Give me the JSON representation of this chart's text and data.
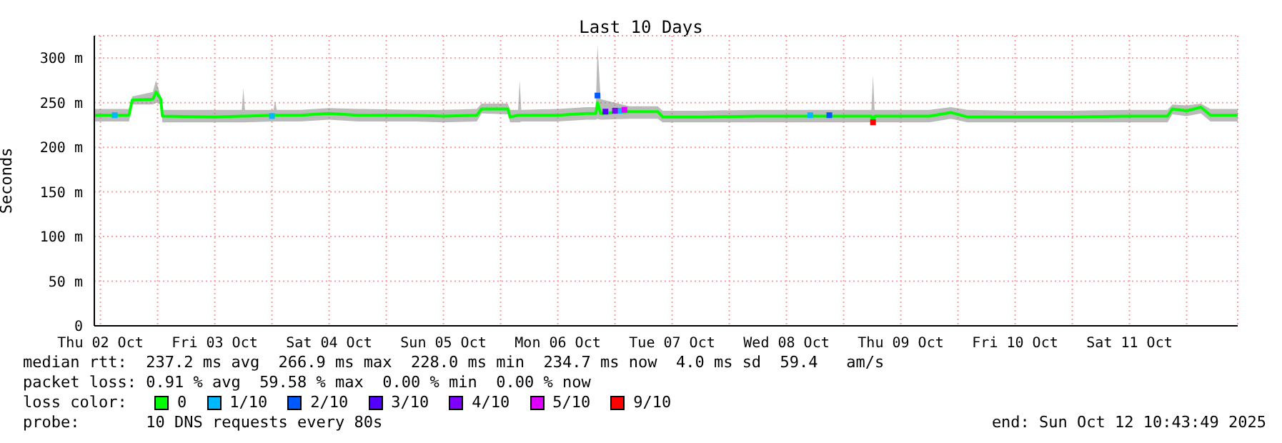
{
  "chart_data": {
    "type": "line",
    "title": "Last 10 Days",
    "ylabel": "Seconds",
    "legend_title": "loss color:",
    "legend": "bottom",
    "grid": true,
    "marker": "none",
    "line_style": "solid",
    "xlim": [
      "2025-10-02T10:43",
      "2025-10-12T10:43"
    ],
    "xticks": [
      {
        "value": "2025-10-02T12:00",
        "label": "Thu 02 Oct"
      },
      {
        "value": "2025-10-03T00:00",
        "label": null
      },
      {
        "value": "2025-10-03T12:00",
        "label": "Fri 03 Oct"
      },
      {
        "value": "2025-10-04T00:00",
        "label": null
      },
      {
        "value": "2025-10-04T12:00",
        "label": "Sat 04 Oct"
      },
      {
        "value": "2025-10-05T00:00",
        "label": null
      },
      {
        "value": "2025-10-05T12:00",
        "label": "Sun 05 Oct"
      },
      {
        "value": "2025-10-06T00:00",
        "label": null
      },
      {
        "value": "2025-10-06T12:00",
        "label": "Mon 06 Oct"
      },
      {
        "value": "2025-10-07T00:00",
        "label": null
      },
      {
        "value": "2025-10-07T12:00",
        "label": "Tue 07 Oct"
      },
      {
        "value": "2025-10-08T00:00",
        "label": null
      },
      {
        "value": "2025-10-08T12:00",
        "label": "Wed 08 Oct"
      },
      {
        "value": "2025-10-09T00:00",
        "label": null
      },
      {
        "value": "2025-10-09T12:00",
        "label": "Thu 09 Oct"
      },
      {
        "value": "2025-10-10T00:00",
        "label": null
      },
      {
        "value": "2025-10-10T12:00",
        "label": "Fri 10 Oct"
      },
      {
        "value": "2025-10-11T00:00",
        "label": null
      },
      {
        "value": "2025-10-11T12:00",
        "label": "Sat 11 Oct"
      },
      {
        "value": "2025-10-12T00:00",
        "label": null
      }
    ],
    "ylim": [
      0,
      325
    ],
    "yticks": [
      0,
      {
        "value": 50,
        "label": "50 m"
      },
      {
        "value": 100,
        "label": "100 m"
      },
      {
        "value": 150,
        "label": "150 m"
      },
      {
        "value": 200,
        "label": "200 m"
      },
      {
        "value": 250,
        "label": "250 m"
      },
      {
        "value": 300,
        "label": "300 m"
      }
    ],
    "series": [
      {
        "name": "0",
        "color": "#00ff00",
        "x": [
          "2025-10-02T10:43",
          "2025-10-02T18:00",
          "2025-10-02T18:40",
          "2025-10-02T23:00",
          "2025-10-02T23:40",
          "2025-10-03T00:40",
          "2025-10-03T01:00",
          "2025-10-03T12:00",
          "2025-10-03T17:40",
          "2025-10-03T18:00",
          "2025-10-03T18:20",
          "2025-10-04T00:20",
          "2025-10-04T00:40",
          "2025-10-04T01:00",
          "2025-10-04T06:00",
          "2025-10-04T12:00",
          "2025-10-04T18:00",
          "2025-10-05T06:00",
          "2025-10-05T12:00",
          "2025-10-05T19:00",
          "2025-10-05T20:00",
          "2025-10-06T01:30",
          "2025-10-06T02:00",
          "2025-10-06T03:40",
          "2025-10-06T04:00",
          "2025-10-06T04:20",
          "2025-10-06T12:00",
          "2025-10-06T18:00",
          "2025-10-06T20:00",
          "2025-10-06T20:20",
          "2025-10-06T21:00",
          "2025-10-07T03:00",
          "2025-10-07T09:00",
          "2025-10-07T10:00",
          "2025-10-07T18:00",
          "2025-10-08T06:00",
          "2025-10-08T18:00",
          "2025-10-09T05:50",
          "2025-10-09T06:10",
          "2025-10-09T06:30",
          "2025-10-09T18:00",
          "2025-10-09T22:30",
          "2025-10-10T02:00",
          "2025-10-10T12:00",
          "2025-10-11T00:00",
          "2025-10-11T12:00",
          "2025-10-11T20:00",
          "2025-10-11T21:00",
          "2025-10-12T00:00",
          "2025-10-12T03:00",
          "2025-10-12T05:00",
          "2025-10-12T10:43"
        ],
        "values": [
          236,
          236,
          253,
          254,
          262,
          254,
          235,
          234,
          235,
          235,
          235,
          236,
          236,
          236,
          236,
          238,
          236,
          236,
          235,
          236,
          243,
          243,
          234,
          236,
          236,
          236,
          236,
          238,
          238,
          250,
          238,
          240,
          240,
          234,
          234,
          235,
          235,
          235,
          228,
          235,
          235,
          239,
          234,
          234,
          234,
          235,
          235,
          243,
          241,
          245,
          236,
          236
        ],
        "lower": [
          229,
          229,
          248,
          248,
          250,
          248,
          228,
          228,
          228,
          228,
          228,
          229,
          229,
          229,
          229,
          231,
          229,
          229,
          228,
          229,
          238,
          237,
          228,
          228,
          228,
          229,
          229,
          231,
          231,
          232,
          231,
          232,
          232,
          228,
          228,
          228,
          228,
          228,
          226,
          228,
          228,
          232,
          228,
          228,
          228,
          228,
          228,
          237,
          235,
          238,
          229,
          229
        ],
        "upper": [
          243,
          243,
          257,
          262,
          275,
          257,
          242,
          242,
          242,
          266,
          242,
          242,
          252,
          242,
          242,
          244,
          243,
          242,
          242,
          243,
          249,
          249,
          242,
          242,
          275,
          242,
          243,
          245,
          245,
          315,
          254,
          246,
          246,
          241,
          241,
          242,
          242,
          242,
          280,
          242,
          242,
          245,
          242,
          241,
          241,
          242,
          242,
          248,
          247,
          249,
          243,
          243
        ]
      },
      {
        "name": "1/10",
        "type": "scatter",
        "marker": "square",
        "color": "#00b8ff",
        "x": [
          "2025-10-02T15:00",
          "2025-10-04T00:00",
          "2025-10-07T01:00",
          "2025-10-08T17:00"
        ],
        "values": [
          236,
          235,
          241,
          236
        ]
      },
      {
        "name": "2/10",
        "type": "scatter",
        "marker": "square",
        "color": "#0059ff",
        "x": [
          "2025-10-06T20:20",
          "2025-10-08T21:00"
        ],
        "values": [
          258,
          236
        ]
      },
      {
        "name": "3/10",
        "type": "scatter",
        "marker": "square",
        "color": "#5500ff",
        "x": [
          "2025-10-06T22:00"
        ],
        "values": [
          240
        ]
      },
      {
        "name": "4/10",
        "type": "scatter",
        "marker": "square",
        "color": "#7e00ff",
        "x": [
          "2025-10-07T00:00"
        ],
        "values": [
          241
        ]
      },
      {
        "name": "5/10",
        "type": "scatter",
        "marker": "square",
        "color": "#dd00ff",
        "x": [
          "2025-10-07T02:00"
        ],
        "values": [
          242
        ]
      },
      {
        "name": "9/10",
        "type": "scatter",
        "marker": "square",
        "color": "#ff0000",
        "x": [
          "2025-10-09T06:10"
        ],
        "values": [
          228
        ]
      }
    ],
    "annotations": [
      "median rtt:  237.2 ms avg  266.9 ms max  228.0 ms min  234.7 ms now  4.0 ms sd  59.4   am/s",
      "packet loss: 0.91 % avg  59.58 % max  0.00 % min  0.00 % now",
      "probe:       10 DNS requests every 80s",
      "end: Sun Oct 12 10:43:49 2025"
    ]
  }
}
